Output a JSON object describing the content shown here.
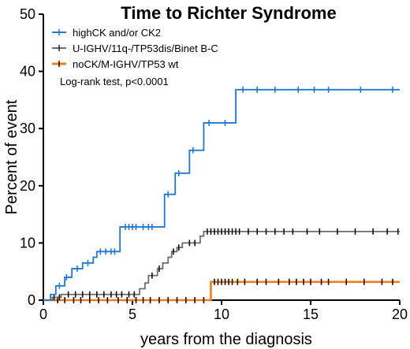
{
  "chart_data": {
    "type": "line",
    "step": true,
    "title": "Time to Richter Syndrome",
    "xlabel": "years from the diagnosis",
    "ylabel": "Percent of event",
    "xlim": [
      0,
      20
    ],
    "ylim": [
      0,
      50
    ],
    "xticks": [
      0,
      5,
      10,
      15,
      20
    ],
    "yticks": [
      0,
      10,
      20,
      30,
      40,
      50
    ],
    "grid": false,
    "legend_position": "top-left",
    "annotation": "Log-rank test, p<0.0001",
    "series": [
      {
        "name": "highCK and/or CK2",
        "color": "#1f78d1",
        "steps": [
          [
            0,
            0
          ],
          [
            0.4,
            1
          ],
          [
            0.7,
            2.5
          ],
          [
            1.2,
            4
          ],
          [
            1.6,
            5.5
          ],
          [
            2.2,
            6.5
          ],
          [
            2.8,
            7.5
          ],
          [
            3.0,
            8.5
          ],
          [
            4.3,
            12.8
          ],
          [
            6.8,
            18.5
          ],
          [
            7.4,
            22.2
          ],
          [
            8.2,
            26.2
          ],
          [
            9.0,
            31
          ],
          [
            10.8,
            36.8
          ],
          [
            20,
            36.8
          ]
        ],
        "censor_x": [
          0.9,
          1.3,
          1.9,
          2.5,
          3.2,
          3.5,
          3.8,
          4.0,
          4.6,
          4.8,
          5.0,
          5.2,
          5.6,
          5.9,
          6.1,
          7.0,
          7.6,
          8.4,
          9.3,
          10.2,
          11.2,
          12.0,
          13.0,
          14.3,
          15.2,
          16.0,
          17.8,
          19.6
        ]
      },
      {
        "name": "U-IGHV/11q-/TP53dis/Binet B-C",
        "color": "#6e6e6e",
        "steps": [
          [
            0,
            0
          ],
          [
            0.5,
            0.5
          ],
          [
            1.0,
            1
          ],
          [
            5.4,
            2
          ],
          [
            5.7,
            3
          ],
          [
            5.9,
            4.3
          ],
          [
            6.4,
            5.5
          ],
          [
            6.7,
            6.5
          ],
          [
            7.0,
            7.5
          ],
          [
            7.2,
            8.5
          ],
          [
            7.5,
            9.2
          ],
          [
            7.8,
            10
          ],
          [
            8.8,
            11.2
          ],
          [
            9.0,
            12
          ],
          [
            20,
            12
          ]
        ],
        "censor_x": [
          0.6,
          0.9,
          1.4,
          1.8,
          2.2,
          2.6,
          3.0,
          3.4,
          3.8,
          4.1,
          4.4,
          4.8,
          5.1,
          6.1,
          6.5,
          7.3,
          7.6,
          8.2,
          8.5,
          9.2,
          9.4,
          9.6,
          9.8,
          10.0,
          10.2,
          10.4,
          10.6,
          10.8,
          11.0,
          11.5,
          12.0,
          12.5,
          13.0,
          13.5,
          14.0,
          14.8,
          15.5,
          16.5,
          17.5,
          18.5,
          19.3,
          19.9
        ]
      },
      {
        "name": "noCK/M-IGHV/TP53 wt",
        "color": "#f07c1e",
        "steps": [
          [
            0,
            0
          ],
          [
            9.4,
            3.2
          ],
          [
            20,
            3.2
          ]
        ],
        "censor_x": [
          0.8,
          1.2,
          1.7,
          2.1,
          2.6,
          3.1,
          3.6,
          4.2,
          4.7,
          5.2,
          5.6,
          6.0,
          6.5,
          7.0,
          7.5,
          8.0,
          8.5,
          9.0,
          9.6,
          9.8,
          10.0,
          10.2,
          10.4,
          10.6,
          10.9,
          11.3,
          12.0,
          12.5,
          13.2,
          13.8,
          14.2,
          14.6,
          15.0,
          15.6,
          16.0,
          17.0,
          18.0,
          19.0,
          19.6
        ]
      }
    ]
  }
}
